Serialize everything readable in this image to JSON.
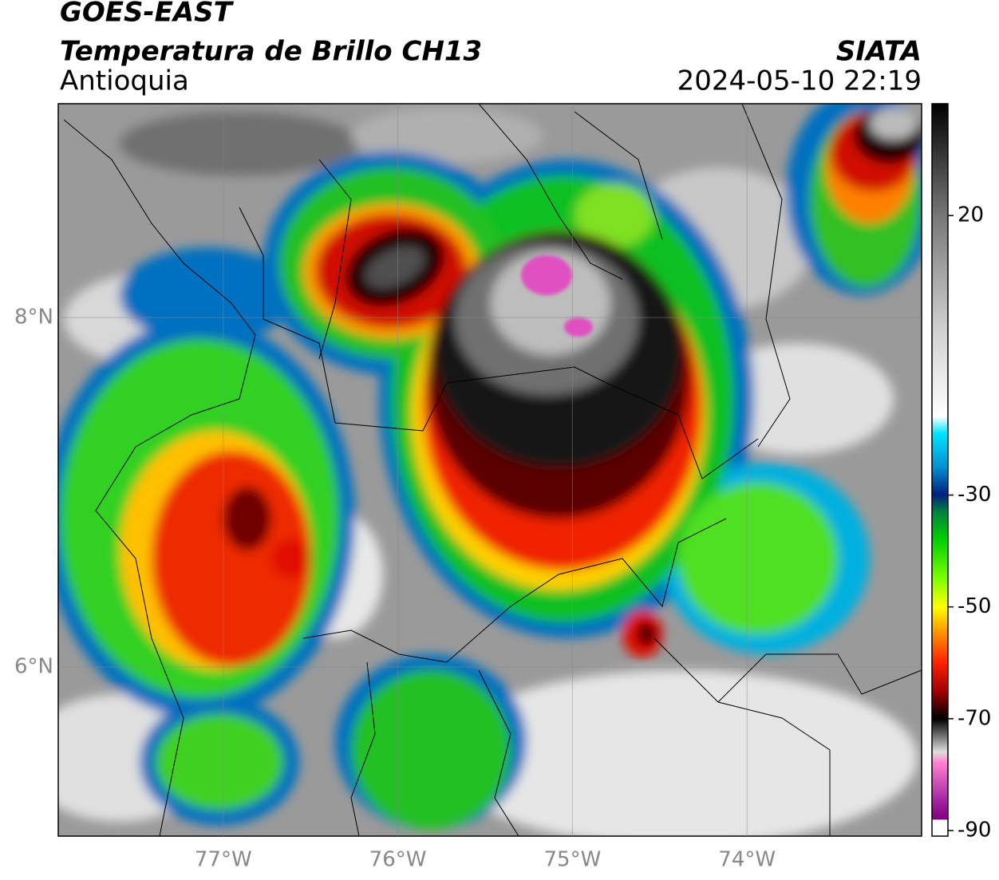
{
  "header": {
    "title": "GOES-EAST",
    "subtitle": "Temperatura de Brillo CH13",
    "region": "Antioquia",
    "source": "SIATA",
    "datetime": "2024-05-10 22:19"
  },
  "map": {
    "xlim": [
      -77.945,
      -73.0
    ],
    "ylim": [
      5.032,
      9.224
    ],
    "xticks": [
      {
        "value": -77,
        "label": "77°W"
      },
      {
        "value": -76,
        "label": "76°W"
      },
      {
        "value": -75,
        "label": "75°W"
      },
      {
        "value": -74,
        "label": "74°W"
      }
    ],
    "yticks": [
      {
        "value": 8,
        "label": "8°N"
      },
      {
        "value": 6,
        "label": "6°N"
      }
    ],
    "grid": true
  },
  "colorbar": {
    "lim": [
      -91,
      40
    ],
    "ticks": [
      20,
      -30,
      -50,
      -70,
      -90
    ]
  }
}
